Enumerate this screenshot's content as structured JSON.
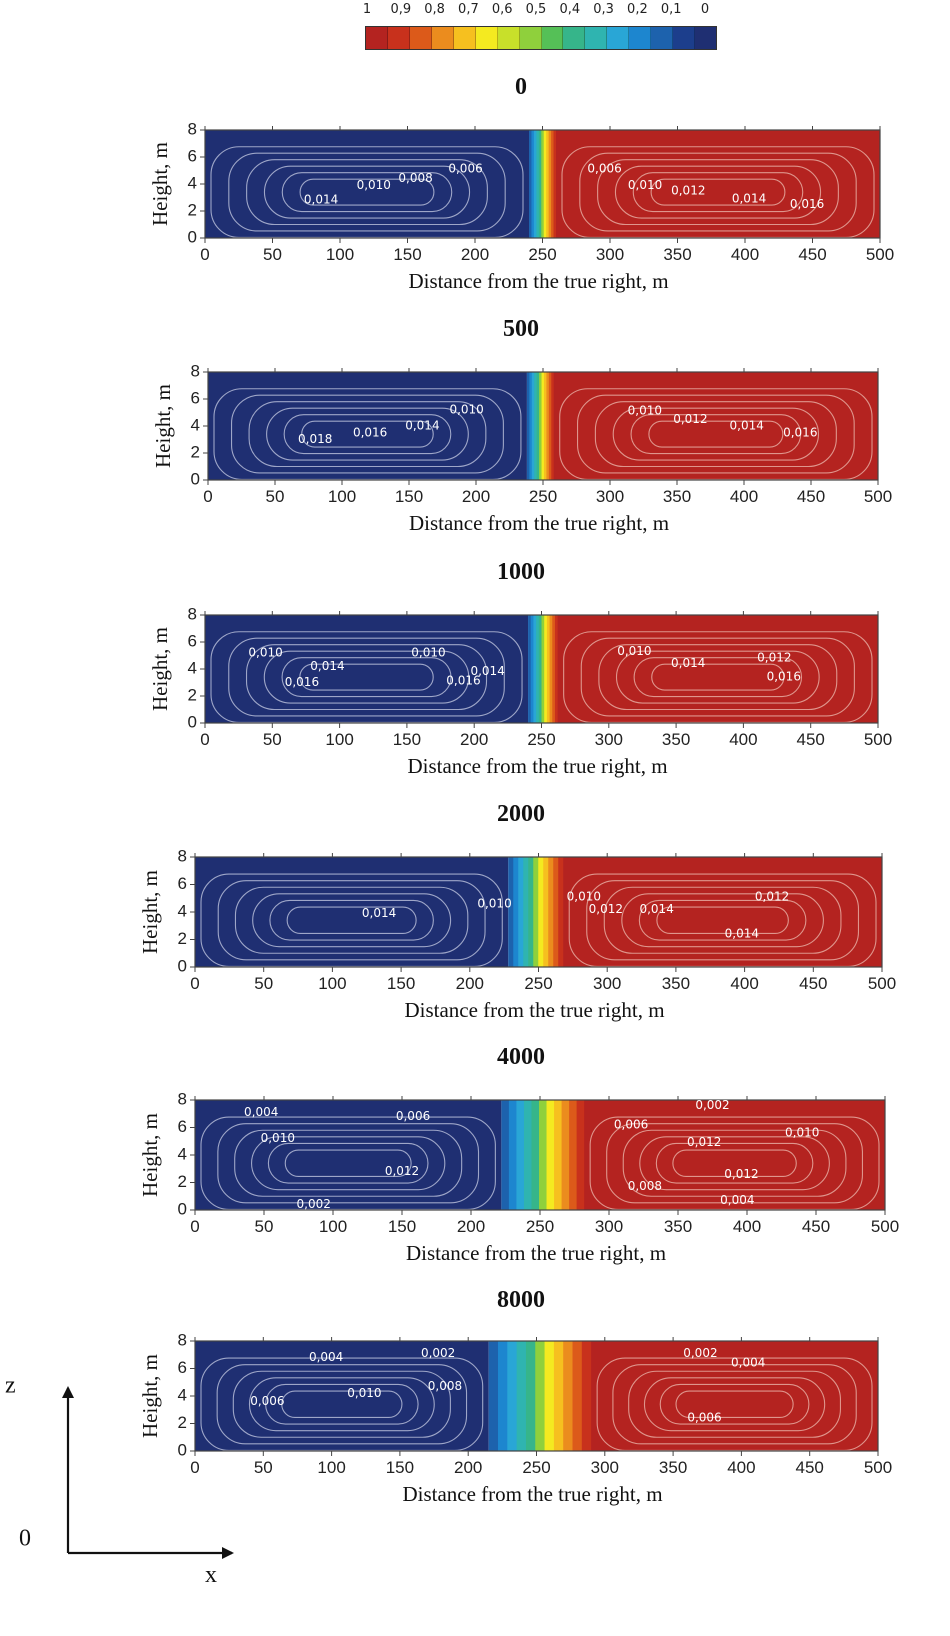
{
  "colorbar": {
    "labels": [
      "1",
      "0,9",
      "0,8",
      "0,7",
      "0,6",
      "0,5",
      "0,4",
      "0,3",
      "0,2",
      "0,1",
      "0"
    ],
    "colors": [
      "#b42320",
      "#c8311c",
      "#dc5a1a",
      "#eb8c1e",
      "#f6c01f",
      "#f4ea20",
      "#c8e02a",
      "#8fd03c",
      "#55c057",
      "#36b58a",
      "#2fb4b0",
      "#29a6d6",
      "#1d86cf",
      "#1d62ad",
      "#1c3e8c",
      "#1f2f72"
    ]
  },
  "axes_indicator": {
    "z_label": "z",
    "origin_label": "0",
    "x_label": "x"
  },
  "chart_data": [
    {
      "type": "heatmap",
      "title": "0",
      "xlabel": "Distance from the true right, m",
      "ylabel": "Height, m",
      "xlim": [
        0,
        500
      ],
      "ylim": [
        0,
        8
      ],
      "xticks": [
        "0",
        "50",
        "100",
        "150",
        "200",
        "250",
        "300",
        "350",
        "400",
        "450",
        "500"
      ],
      "yticks": [
        "0",
        "2",
        "4",
        "6",
        "8"
      ],
      "front": {
        "start": 240,
        "end": 260
      },
      "contour_labels": [
        {
          "text": "0,006",
          "x": 193,
          "y": 5.1
        },
        {
          "text": "0,010",
          "x": 125,
          "y": 3.9
        },
        {
          "text": "0,008",
          "x": 156,
          "y": 4.4
        },
        {
          "text": "0,014",
          "x": 86,
          "y": 2.8
        },
        {
          "text": "0,006",
          "x": 296,
          "y": 5.1
        },
        {
          "text": "0,010",
          "x": 326,
          "y": 3.9
        },
        {
          "text": "0,012",
          "x": 358,
          "y": 3.5
        },
        {
          "text": "0,014",
          "x": 403,
          "y": 2.9
        },
        {
          "text": "0,016",
          "x": 446,
          "y": 2.5
        }
      ]
    },
    {
      "type": "heatmap",
      "title": "500",
      "xlabel": "Distance from the true right, m",
      "ylabel": "Height, m",
      "xlim": [
        0,
        500
      ],
      "ylim": [
        0,
        8
      ],
      "xticks": [
        "0",
        "50",
        "100",
        "150",
        "200",
        "250",
        "300",
        "350",
        "400",
        "450",
        "500"
      ],
      "yticks": [
        "0",
        "2",
        "4",
        "6",
        "8"
      ],
      "front": {
        "start": 238,
        "end": 258
      },
      "contour_labels": [
        {
          "text": "0,010",
          "x": 193,
          "y": 5.2
        },
        {
          "text": "0,016",
          "x": 121,
          "y": 3.5
        },
        {
          "text": "0,014",
          "x": 160,
          "y": 4.0
        },
        {
          "text": "0,018",
          "x": 80,
          "y": 3.0
        },
        {
          "text": "0,010",
          "x": 326,
          "y": 5.1
        },
        {
          "text": "0,012",
          "x": 360,
          "y": 4.5
        },
        {
          "text": "0,014",
          "x": 402,
          "y": 4.0
        },
        {
          "text": "0,016",
          "x": 442,
          "y": 3.5
        }
      ]
    },
    {
      "type": "heatmap",
      "title": "1000",
      "xlabel": "Distance from the true right, m",
      "ylabel": "Height, m",
      "xlim": [
        0,
        500
      ],
      "ylim": [
        0,
        8
      ],
      "xticks": [
        "0",
        "50",
        "100",
        "150",
        "200",
        "250",
        "300",
        "350",
        "400",
        "450",
        "500"
      ],
      "yticks": [
        "0",
        "2",
        "4",
        "6",
        "8"
      ],
      "front": {
        "start": 240,
        "end": 262
      },
      "contour_labels": [
        {
          "text": "0,010",
          "x": 45,
          "y": 5.2
        },
        {
          "text": "0,010",
          "x": 166,
          "y": 5.2
        },
        {
          "text": "0,014",
          "x": 91,
          "y": 4.2
        },
        {
          "text": "0,016",
          "x": 72,
          "y": 3.0
        },
        {
          "text": "0,016",
          "x": 192,
          "y": 3.1
        },
        {
          "text": "0,014",
          "x": 210,
          "y": 3.8
        },
        {
          "text": "0,010",
          "x": 319,
          "y": 5.3
        },
        {
          "text": "0,014",
          "x": 359,
          "y": 4.4
        },
        {
          "text": "0,012",
          "x": 423,
          "y": 4.8
        },
        {
          "text": "0,016",
          "x": 430,
          "y": 3.4
        }
      ]
    },
    {
      "type": "heatmap",
      "title": "2000",
      "xlabel": "Distance from the true right, m",
      "ylabel": "Height, m",
      "xlim": [
        0,
        500
      ],
      "ylim": [
        0,
        8
      ],
      "xticks": [
        "0",
        "50",
        "100",
        "150",
        "200",
        "250",
        "300",
        "350",
        "400",
        "450",
        "500"
      ],
      "yticks": [
        "0",
        "2",
        "4",
        "6",
        "8"
      ],
      "front": {
        "start": 228,
        "end": 268
      },
      "contour_labels": [
        {
          "text": "0,014",
          "x": 134,
          "y": 3.9
        },
        {
          "text": "0,010",
          "x": 218,
          "y": 4.6
        },
        {
          "text": "0,010",
          "x": 283,
          "y": 5.1
        },
        {
          "text": "0,012",
          "x": 299,
          "y": 4.2
        },
        {
          "text": "0,014",
          "x": 336,
          "y": 4.2
        },
        {
          "text": "0,012",
          "x": 420,
          "y": 5.1
        },
        {
          "text": "0,014",
          "x": 398,
          "y": 2.4
        }
      ]
    },
    {
      "type": "heatmap",
      "title": "4000",
      "xlabel": "Distance from the true right, m",
      "ylabel": "Height, m",
      "xlim": [
        0,
        500
      ],
      "ylim": [
        0,
        8
      ],
      "xticks": [
        "0",
        "50",
        "100",
        "150",
        "200",
        "250",
        "300",
        "350",
        "400",
        "450",
        "500"
      ],
      "yticks": [
        "0",
        "2",
        "4",
        "6",
        "8"
      ],
      "front": {
        "start": 222,
        "end": 282
      },
      "contour_labels": [
        {
          "text": "0,004",
          "x": 48,
          "y": 7.1
        },
        {
          "text": "0,006",
          "x": 158,
          "y": 6.8
        },
        {
          "text": "0,010",
          "x": 60,
          "y": 5.2
        },
        {
          "text": "0,012",
          "x": 150,
          "y": 2.8
        },
        {
          "text": "0,002",
          "x": 86,
          "y": 0.4
        },
        {
          "text": "0,006",
          "x": 316,
          "y": 6.2
        },
        {
          "text": "0,002",
          "x": 375,
          "y": 7.6
        },
        {
          "text": "0,010",
          "x": 440,
          "y": 5.6
        },
        {
          "text": "0,012",
          "x": 369,
          "y": 4.9
        },
        {
          "text": "0,012",
          "x": 396,
          "y": 2.6
        },
        {
          "text": "0,008",
          "x": 326,
          "y": 1.7
        },
        {
          "text": "0,004",
          "x": 393,
          "y": 0.7
        }
      ]
    },
    {
      "type": "heatmap",
      "title": "8000",
      "xlabel": "Distance from the true right, m",
      "ylabel": "Height, m",
      "xlim": [
        0,
        500
      ],
      "ylim": [
        0,
        8
      ],
      "xticks": [
        "0",
        "50",
        "100",
        "150",
        "200",
        "250",
        "300",
        "350",
        "400",
        "450",
        "500"
      ],
      "yticks": [
        "0",
        "2",
        "4",
        "6",
        "8"
      ],
      "front": {
        "start": 215,
        "end": 290
      },
      "contour_labels": [
        {
          "text": "0,004",
          "x": 96,
          "y": 6.8
        },
        {
          "text": "0,002",
          "x": 178,
          "y": 7.1
        },
        {
          "text": "0,006",
          "x": 53,
          "y": 3.6
        },
        {
          "text": "0,010",
          "x": 124,
          "y": 4.2
        },
        {
          "text": "0,008",
          "x": 183,
          "y": 4.7
        },
        {
          "text": "0,002",
          "x": 370,
          "y": 7.1
        },
        {
          "text": "0,004",
          "x": 405,
          "y": 6.4
        },
        {
          "text": "0,006",
          "x": 373,
          "y": 2.4
        }
      ]
    }
  ]
}
